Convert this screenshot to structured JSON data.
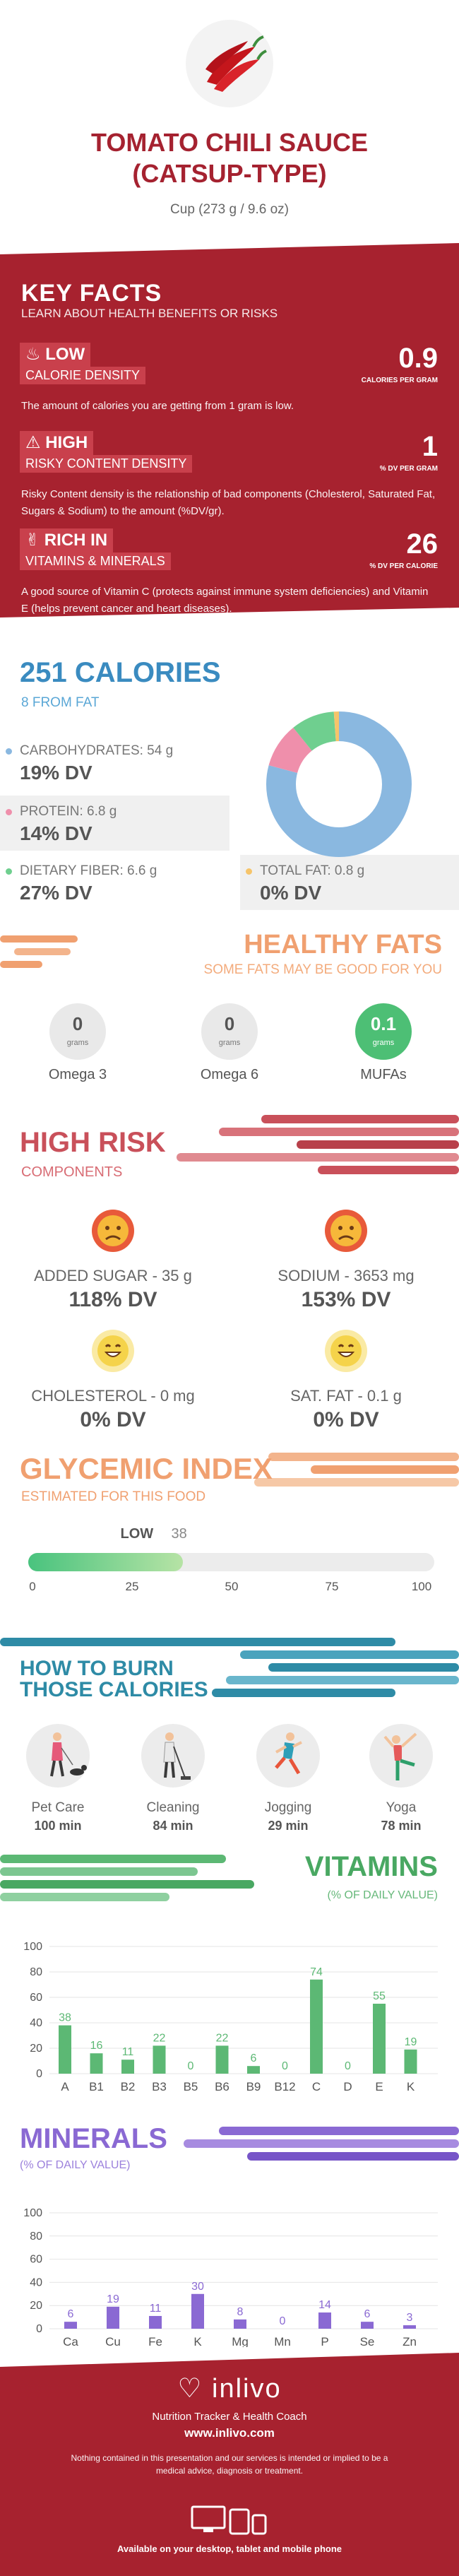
{
  "header": {
    "title_line1": "TOMATO CHILI SAUCE",
    "title_line2": "(CATSUP-TYPE)",
    "serving": "Cup (273 g / 9.6 oz)"
  },
  "key_facts": {
    "title": "KEY FACTS",
    "subtitle": "LEARN ABOUT HEALTH BENEFITS OR RISKS",
    "items": [
      {
        "level": "LOW",
        "label": "CALORIE DENSITY",
        "value": "0.9",
        "unit": "CALORIES PER GRAM",
        "description": "The amount of calories you are getting from 1 gram is low.",
        "icon": "flame-icon"
      },
      {
        "level": "HIGH",
        "label": "RISKY CONTENT DENSITY",
        "value": "1",
        "unit": "% DV PER GRAM",
        "description": "Risky Content density is the relationship of bad components (Cholesterol, Saturated Fat, Sugars & Sodium) to the amount (%DV/gr).",
        "icon": "warning-icon"
      },
      {
        "level": "RICH  IN",
        "label": "VITAMINS & MINERALS",
        "value": "26",
        "unit": "% DV PER CALORIE",
        "description": "A good source of Vitamin C (protects against immune system deficiencies) and Vitamin E (helps prevent cancer and heart diseases).",
        "icon": "thumbs-up-icon"
      }
    ]
  },
  "calories": {
    "title": "251 CALORIES",
    "from_fat": "8 FROM FAT",
    "nutrients": [
      {
        "label": "CARBOHYDRATES: 54 g",
        "dv": "19% DV",
        "color": "#8ab8e0"
      },
      {
        "label": "PROTEIN: 6.8 g",
        "dv": "14% DV",
        "color": "#ef8fab"
      },
      {
        "label": "DIETARY FIBER: 6.6 g",
        "dv": "27% DV",
        "color": "#6fcf8f"
      },
      {
        "label": "TOTAL FAT: 0.8 g",
        "dv": "0% DV",
        "color": "#f6c46a"
      }
    ],
    "donut": [
      {
        "name": "carbohydrates",
        "grams": 54,
        "color": "#8ab8e0"
      },
      {
        "name": "protein",
        "grams": 6.8,
        "color": "#ef8fab"
      },
      {
        "name": "dietary fiber",
        "grams": 6.6,
        "color": "#6fcf8f"
      },
      {
        "name": "total fat",
        "grams": 0.8,
        "color": "#f6c46a"
      }
    ]
  },
  "healthy_fats": {
    "title": "HEALTHY FATS",
    "subtitle": "SOME FATS MAY BE GOOD FOR YOU",
    "unit": "grams",
    "items": [
      {
        "value": "0",
        "name": "Omega 3"
      },
      {
        "value": "0",
        "name": "Omega 6"
      },
      {
        "value": "0.1",
        "name": "MUFAs"
      }
    ]
  },
  "high_risk": {
    "title": "HIGH RISK",
    "subtitle": "COMPONENTS",
    "items": [
      {
        "label": "ADDED SUGAR - 35 g",
        "dv": "118% DV",
        "face": "sad-face-icon",
        "color": "#e85a3a"
      },
      {
        "label": "SODIUM - 3653 mg",
        "dv": "153% DV",
        "face": "sad-face-icon",
        "color": "#e85a3a"
      },
      {
        "label": "CHOLESTEROL - 0 mg",
        "dv": "0% DV",
        "face": "happy-face-icon",
        "color": "#f5d34a"
      },
      {
        "label": "SAT. FAT - 0.1 g",
        "dv": "0% DV",
        "face": "happy-face-icon",
        "color": "#f5d34a"
      }
    ]
  },
  "glycemic": {
    "title": "GLYCEMIC INDEX",
    "subtitle": "ESTIMATED FOR THIS FOOD",
    "level": "LOW",
    "value": 38,
    "value_text": "38",
    "ticks": [
      "0",
      "25",
      "50",
      "75",
      "100"
    ]
  },
  "burn": {
    "title_line1": "HOW TO BURN",
    "title_line2": "THOSE CALORIES",
    "activities": [
      {
        "name": "Pet Care",
        "minutes": "100 min",
        "icon": "pet-care-icon"
      },
      {
        "name": "Cleaning",
        "minutes": "84 min",
        "icon": "cleaning-icon"
      },
      {
        "name": "Jogging",
        "minutes": "29 min",
        "icon": "jogging-icon"
      },
      {
        "name": "Yoga",
        "minutes": "78 min",
        "icon": "yoga-icon"
      }
    ]
  },
  "vitamins": {
    "title": "VITAMINS",
    "subtitle": "(% OF DAILY VALUE)",
    "color": "#5cb874"
  },
  "minerals": {
    "title": "MINERALS",
    "subtitle": "(% OF DAILY VALUE)",
    "color": "#8a69d3"
  },
  "chart_data": [
    {
      "type": "bar",
      "title": "VITAMINS",
      "ylabel": "(% OF DAILY VALUE)",
      "categories": [
        "A",
        "B1",
        "B2",
        "B3",
        "B5",
        "B6",
        "B9",
        "B12",
        "C",
        "D",
        "E",
        "K"
      ],
      "values": [
        38,
        16,
        11,
        22,
        0,
        22,
        6,
        0,
        74,
        0,
        55,
        19
      ],
      "yticks": [
        0,
        20,
        40,
        60,
        80,
        100
      ],
      "ylim": [
        0,
        100
      ],
      "grid": true
    },
    {
      "type": "bar",
      "title": "MINERALS",
      "ylabel": "(% OF DAILY VALUE)",
      "categories": [
        "Ca",
        "Cu",
        "Fe",
        "K",
        "Mg",
        "Mn",
        "P",
        "Se",
        "Zn"
      ],
      "values": [
        6,
        19,
        11,
        30,
        8,
        0,
        14,
        6,
        3
      ],
      "yticks": [
        0,
        20,
        40,
        60,
        80,
        100
      ],
      "ylim": [
        0,
        100
      ],
      "grid": true
    }
  ],
  "footer": {
    "brand": "inlivo",
    "tagline": "Nutrition Tracker & Health Coach",
    "url": "www.inlivo.com",
    "disclaimer": "Nothing contained in this presentation and our services is intended or implied to be a medical advice, diagnosis or treatment.",
    "available": "Available on your desktop, tablet and mobile phone"
  }
}
